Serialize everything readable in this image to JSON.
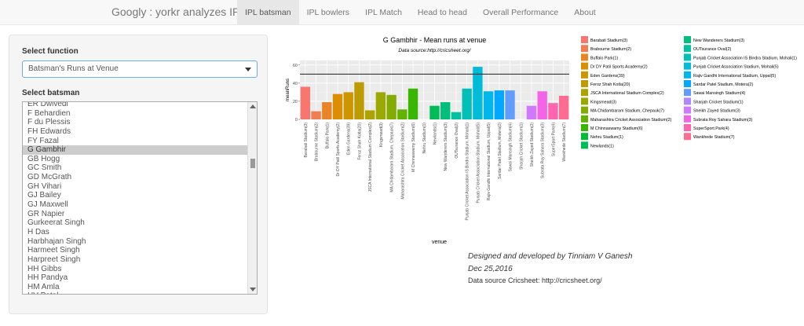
{
  "navbar": {
    "brand": "Googly : yorkr analyzes IPL!",
    "tabs": [
      "IPL batsman",
      "IPL bowlers",
      "IPL Match",
      "Head to head",
      "Overall Performance",
      "About"
    ],
    "active_tab": "IPL batsman"
  },
  "sidebar": {
    "function_label": "Select function",
    "function_value": "Batsman's Runs at Venue",
    "batsman_label": "Select batsman",
    "batsmen": [
      "ER Dwivedi",
      "F Behardien",
      "F du Plessis",
      "FH Edwards",
      "FY Fazal",
      "G Gambhir",
      "GB Hogg",
      "GC Smith",
      "GD McGrath",
      "GH Vihari",
      "GJ Bailey",
      "GJ Maxwell",
      "GR Napier",
      "Gurkeerat Singh",
      "H Das",
      "Harbhajan Singh",
      "Harmeet Singh",
      "Harpreet Singh",
      "HH Gibbs",
      "HH Pandya",
      "HM Amla",
      "HV Patel"
    ],
    "selected_batsman": "G Gambhir"
  },
  "chart_data": {
    "type": "bar",
    "title": "G Gambhir - Mean runs at venue",
    "subtitle": "Data source:http://cricsheet.org/",
    "xlabel": "venue",
    "ylabel": "meanRuns",
    "ylim": [
      0,
      60
    ],
    "yticks": [
      0,
      20,
      40,
      60
    ],
    "reference_line": 50,
    "grid": true,
    "legend_position": "right",
    "categories": [
      "Barabati Stadium(3)",
      "Brabourne Stadium(2)",
      "Buffalo Park(1)",
      "Dr DY Patil Sports Academy(2)",
      "Eden Gardens(39)",
      "Feroz Shah Kotla(20)",
      "JSCA International Stadium Complex(2)",
      "Kingsmead(3)",
      "MA Chidambaram Stadium, Chepauk(7)",
      "Maharashtra Cricket Association Stadium(2)",
      "M Chinnaswamy Stadium(6)",
      "Nehru Stadium(1)",
      "Newlands(1)",
      "New Wanderers Stadium(3)",
      "OUTsurance Oval(2)",
      "Punjab Cricket Association IS Bindra Stadium, Mohali(1)",
      "Punjab Cricket Association Stadium, Mohali(5)",
      "Rajiv Gandhi International Stadium, Uppal(5)",
      "Sardar Patel Stadium, Motera(2)",
      "Sawai Mansingh Stadium(4)",
      "Sharjah Cricket Stadium(1)",
      "Sheikh Zayed Stadium(3)",
      "Subrata Roy Sahara Stadium(3)",
      "SuperSport Park(4)",
      "Wankhede Stadium(7)"
    ],
    "values": [
      36,
      9,
      19,
      28,
      30,
      41,
      10,
      30,
      27,
      11,
      34,
      0,
      15,
      19,
      8,
      34,
      58,
      31,
      32,
      32,
      0,
      15,
      31,
      18,
      26
    ],
    "colors": [
      "#F8766D",
      "#F27D52",
      "#E88526",
      "#DB8E00",
      "#CD9600",
      "#BE9C00",
      "#AEA200",
      "#9AA800",
      "#82AD00",
      "#64B200",
      "#39B600",
      "#00BA38",
      "#00BC56",
      "#00BF7D",
      "#00C19F",
      "#00C0B8",
      "#00BCD8",
      "#00B6EB",
      "#00A9FF",
      "#619CFF",
      "#AE87FF",
      "#D078FF",
      "#F365E6",
      "#FF64B0",
      "#FF6C91"
    ]
  },
  "credits": {
    "designer": "Designed and developed by Tinniam V Ganesh",
    "date": "Dec 25,2016",
    "source": "Data source Cricsheet: http://cricsheet.org/"
  }
}
